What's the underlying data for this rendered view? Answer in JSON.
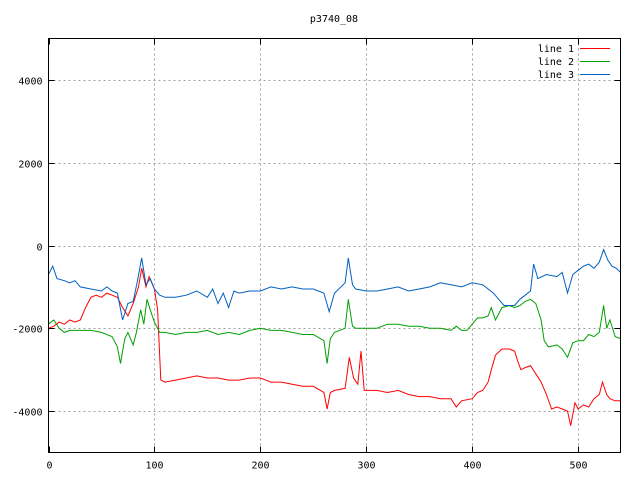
{
  "chart_data": {
    "type": "line",
    "title": "p3740_08",
    "xlim": [
      0,
      540
    ],
    "ylim": [
      -5000,
      5000
    ],
    "x_ticks": [
      0,
      100,
      200,
      300,
      400,
      500
    ],
    "y_ticks": [
      -4000,
      -2000,
      0,
      2000,
      4000
    ],
    "grid": true,
    "legend_position": "top-right",
    "series": [
      {
        "name": "line 1",
        "color": "#ff0000",
        "points": [
          [
            0,
            -2000
          ],
          [
            5,
            -1950
          ],
          [
            10,
            -1850
          ],
          [
            15,
            -1900
          ],
          [
            20,
            -1800
          ],
          [
            25,
            -1850
          ],
          [
            30,
            -1800
          ],
          [
            35,
            -1500
          ],
          [
            40,
            -1250
          ],
          [
            45,
            -1200
          ],
          [
            50,
            -1250
          ],
          [
            55,
            -1150
          ],
          [
            60,
            -1200
          ],
          [
            65,
            -1250
          ],
          [
            70,
            -1500
          ],
          [
            75,
            -1700
          ],
          [
            80,
            -1400
          ],
          [
            85,
            -1000
          ],
          [
            88,
            -550
          ],
          [
            92,
            -1000
          ],
          [
            95,
            -750
          ],
          [
            100,
            -1050
          ],
          [
            103,
            -1550
          ],
          [
            106,
            -3250
          ],
          [
            110,
            -3300
          ],
          [
            120,
            -3250
          ],
          [
            130,
            -3200
          ],
          [
            140,
            -3150
          ],
          [
            150,
            -3200
          ],
          [
            160,
            -3200
          ],
          [
            170,
            -3250
          ],
          [
            180,
            -3250
          ],
          [
            190,
            -3200
          ],
          [
            200,
            -3200
          ],
          [
            210,
            -3300
          ],
          [
            220,
            -3300
          ],
          [
            230,
            -3350
          ],
          [
            240,
            -3400
          ],
          [
            250,
            -3400
          ],
          [
            260,
            -3550
          ],
          [
            263,
            -3950
          ],
          [
            266,
            -3550
          ],
          [
            270,
            -3500
          ],
          [
            280,
            -3450
          ],
          [
            284,
            -2700
          ],
          [
            288,
            -3200
          ],
          [
            292,
            -3350
          ],
          [
            295,
            -2550
          ],
          [
            298,
            -3500
          ],
          [
            310,
            -3500
          ],
          [
            320,
            -3550
          ],
          [
            330,
            -3500
          ],
          [
            340,
            -3600
          ],
          [
            350,
            -3650
          ],
          [
            360,
            -3650
          ],
          [
            370,
            -3700
          ],
          [
            380,
            -3700
          ],
          [
            385,
            -3900
          ],
          [
            390,
            -3750
          ],
          [
            400,
            -3700
          ],
          [
            405,
            -3550
          ],
          [
            410,
            -3500
          ],
          [
            415,
            -3300
          ],
          [
            418,
            -3000
          ],
          [
            422,
            -2650
          ],
          [
            428,
            -2500
          ],
          [
            435,
            -2500
          ],
          [
            440,
            -2550
          ],
          [
            443,
            -2800
          ],
          [
            446,
            -3000
          ],
          [
            450,
            -2950
          ],
          [
            455,
            -2900
          ],
          [
            460,
            -3100
          ],
          [
            465,
            -3300
          ],
          [
            470,
            -3600
          ],
          [
            475,
            -3950
          ],
          [
            480,
            -3900
          ],
          [
            485,
            -3950
          ],
          [
            490,
            -4000
          ],
          [
            493,
            -4350
          ],
          [
            497,
            -3800
          ],
          [
            500,
            -3950
          ],
          [
            505,
            -3850
          ],
          [
            510,
            -3900
          ],
          [
            515,
            -3700
          ],
          [
            520,
            -3600
          ],
          [
            523,
            -3300
          ],
          [
            527,
            -3600
          ],
          [
            530,
            -3700
          ],
          [
            535,
            -3750
          ],
          [
            540,
            -3750
          ]
        ]
      },
      {
        "name": "line 2",
        "color": "#00a000",
        "points": [
          [
            0,
            -1900
          ],
          [
            5,
            -1800
          ],
          [
            10,
            -2000
          ],
          [
            15,
            -2100
          ],
          [
            20,
            -2050
          ],
          [
            30,
            -2050
          ],
          [
            40,
            -2050
          ],
          [
            50,
            -2100
          ],
          [
            60,
            -2200
          ],
          [
            65,
            -2450
          ],
          [
            68,
            -2850
          ],
          [
            72,
            -2250
          ],
          [
            75,
            -2100
          ],
          [
            80,
            -2400
          ],
          [
            83,
            -2100
          ],
          [
            87,
            -1550
          ],
          [
            90,
            -1900
          ],
          [
            93,
            -1300
          ],
          [
            96,
            -1550
          ],
          [
            100,
            -1850
          ],
          [
            105,
            -2100
          ],
          [
            110,
            -2100
          ],
          [
            120,
            -2150
          ],
          [
            130,
            -2100
          ],
          [
            140,
            -2100
          ],
          [
            150,
            -2050
          ],
          [
            160,
            -2150
          ],
          [
            170,
            -2100
          ],
          [
            180,
            -2150
          ],
          [
            190,
            -2050
          ],
          [
            200,
            -2000
          ],
          [
            210,
            -2050
          ],
          [
            220,
            -2050
          ],
          [
            230,
            -2100
          ],
          [
            240,
            -2150
          ],
          [
            250,
            -2150
          ],
          [
            260,
            -2300
          ],
          [
            263,
            -2850
          ],
          [
            266,
            -2250
          ],
          [
            270,
            -2100
          ],
          [
            280,
            -2000
          ],
          [
            283,
            -1300
          ],
          [
            287,
            -1950
          ],
          [
            290,
            -2000
          ],
          [
            300,
            -2000
          ],
          [
            310,
            -2000
          ],
          [
            320,
            -1900
          ],
          [
            330,
            -1900
          ],
          [
            340,
            -1950
          ],
          [
            350,
            -1950
          ],
          [
            360,
            -2000
          ],
          [
            370,
            -2000
          ],
          [
            380,
            -2050
          ],
          [
            385,
            -1950
          ],
          [
            390,
            -2050
          ],
          [
            395,
            -2050
          ],
          [
            400,
            -1900
          ],
          [
            405,
            -1750
          ],
          [
            410,
            -1750
          ],
          [
            415,
            -1700
          ],
          [
            418,
            -1500
          ],
          [
            422,
            -1800
          ],
          [
            428,
            -1500
          ],
          [
            435,
            -1450
          ],
          [
            440,
            -1500
          ],
          [
            445,
            -1450
          ],
          [
            450,
            -1350
          ],
          [
            455,
            -1300
          ],
          [
            460,
            -1400
          ],
          [
            465,
            -1800
          ],
          [
            468,
            -2300
          ],
          [
            472,
            -2450
          ],
          [
            480,
            -2400
          ],
          [
            485,
            -2500
          ],
          [
            490,
            -2700
          ],
          [
            495,
            -2350
          ],
          [
            500,
            -2300
          ],
          [
            505,
            -2300
          ],
          [
            510,
            -2150
          ],
          [
            515,
            -2200
          ],
          [
            520,
            -2100
          ],
          [
            524,
            -1450
          ],
          [
            527,
            -2000
          ],
          [
            530,
            -1800
          ],
          [
            535,
            -2200
          ],
          [
            540,
            -2250
          ]
        ]
      },
      {
        "name": "line 3",
        "color": "#0060c0",
        "points": [
          [
            0,
            -700
          ],
          [
            4,
            -500
          ],
          [
            8,
            -800
          ],
          [
            15,
            -850
          ],
          [
            20,
            -900
          ],
          [
            25,
            -850
          ],
          [
            30,
            -1000
          ],
          [
            40,
            -1050
          ],
          [
            50,
            -1100
          ],
          [
            55,
            -1000
          ],
          [
            60,
            -1100
          ],
          [
            65,
            -1150
          ],
          [
            70,
            -1800
          ],
          [
            75,
            -1400
          ],
          [
            80,
            -1350
          ],
          [
            84,
            -850
          ],
          [
            88,
            -300
          ],
          [
            92,
            -950
          ],
          [
            96,
            -800
          ],
          [
            100,
            -1050
          ],
          [
            105,
            -1200
          ],
          [
            110,
            -1250
          ],
          [
            120,
            -1250
          ],
          [
            130,
            -1200
          ],
          [
            140,
            -1100
          ],
          [
            150,
            -1250
          ],
          [
            155,
            -1050
          ],
          [
            160,
            -1400
          ],
          [
            165,
            -1150
          ],
          [
            170,
            -1500
          ],
          [
            175,
            -1100
          ],
          [
            180,
            -1150
          ],
          [
            190,
            -1100
          ],
          [
            200,
            -1100
          ],
          [
            210,
            -1000
          ],
          [
            220,
            -1050
          ],
          [
            230,
            -1000
          ],
          [
            240,
            -1050
          ],
          [
            250,
            -1050
          ],
          [
            260,
            -1150
          ],
          [
            265,
            -1600
          ],
          [
            270,
            -1150
          ],
          [
            280,
            -900
          ],
          [
            283,
            -300
          ],
          [
            287,
            -950
          ],
          [
            290,
            -1050
          ],
          [
            300,
            -1100
          ],
          [
            310,
            -1100
          ],
          [
            320,
            -1050
          ],
          [
            330,
            -1000
          ],
          [
            340,
            -1100
          ],
          [
            350,
            -1050
          ],
          [
            360,
            -1000
          ],
          [
            370,
            -900
          ],
          [
            380,
            -950
          ],
          [
            390,
            -1000
          ],
          [
            400,
            -900
          ],
          [
            410,
            -950
          ],
          [
            420,
            -1150
          ],
          [
            425,
            -1300
          ],
          [
            430,
            -1450
          ],
          [
            440,
            -1450
          ],
          [
            445,
            -1300
          ],
          [
            450,
            -1200
          ],
          [
            455,
            -1100
          ],
          [
            458,
            -450
          ],
          [
            462,
            -800
          ],
          [
            470,
            -700
          ],
          [
            480,
            -750
          ],
          [
            485,
            -650
          ],
          [
            490,
            -1150
          ],
          [
            495,
            -700
          ],
          [
            500,
            -600
          ],
          [
            505,
            -500
          ],
          [
            510,
            -450
          ],
          [
            515,
            -550
          ],
          [
            520,
            -400
          ],
          [
            524,
            -100
          ],
          [
            528,
            -350
          ],
          [
            532,
            -500
          ],
          [
            536,
            -550
          ],
          [
            540,
            -650
          ]
        ]
      }
    ]
  }
}
